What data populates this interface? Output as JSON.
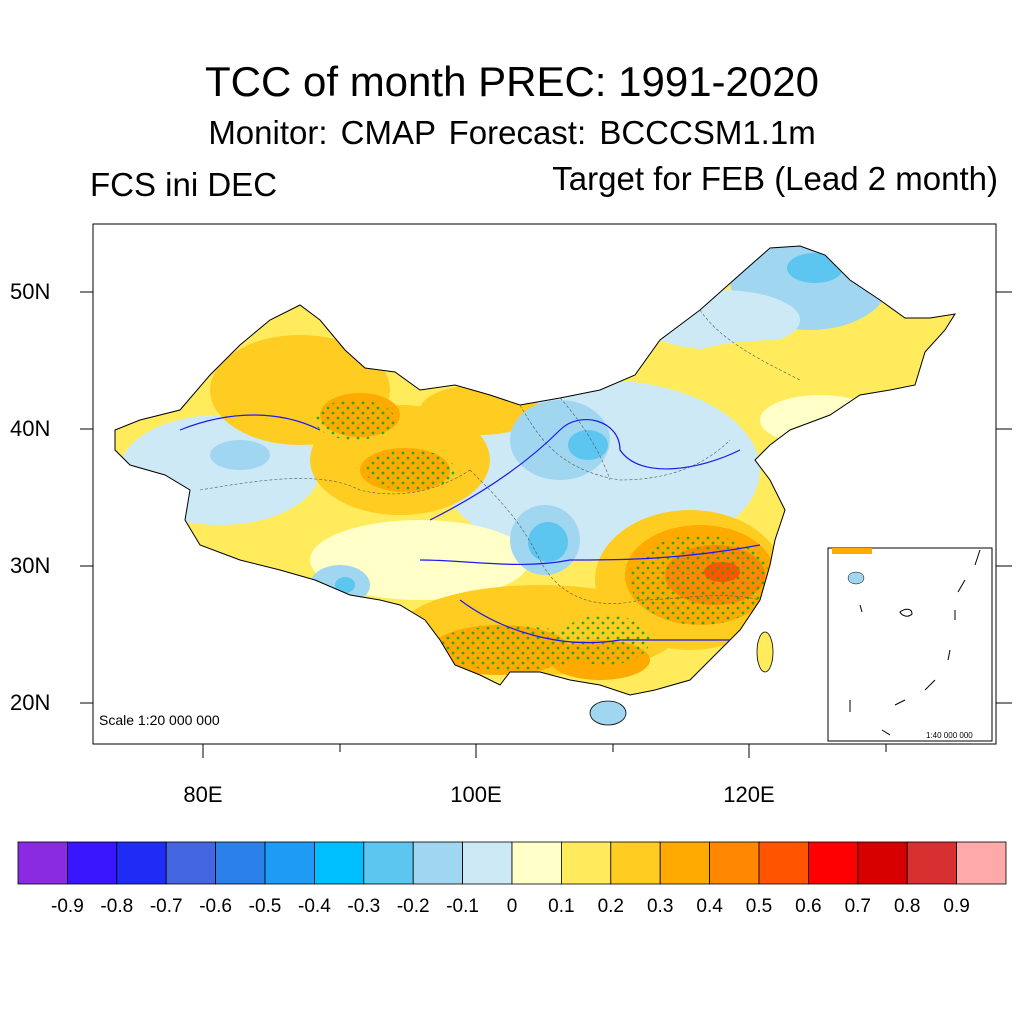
{
  "header": {
    "title": "TCC of month PREC: 1991-2020",
    "subtitle": "Monitor: CMAP   Forecast: BCCCSM1.1m",
    "left_label": "FCS ini DEC",
    "right_label": "Target for FEB (Lead 2 month)"
  },
  "map": {
    "scale_text": "Scale 1:20 000 000",
    "inset_scale_text": "1:40 000 000",
    "lat_labels": [
      "50N",
      "40N",
      "30N",
      "20N"
    ],
    "lon_labels": [
      "80E",
      "100E",
      "120E"
    ]
  },
  "colorbar": {
    "colors": [
      "#8a2be2",
      "#3a16ff",
      "#1f2cf5",
      "#4466e0",
      "#2b7fe8",
      "#1e9cf5",
      "#00bfff",
      "#5cc5f0",
      "#a0d6f0",
      "#cde9f6",
      "#ffffc8",
      "#ffeb5c",
      "#ffcc22",
      "#ffaa00",
      "#ff8800",
      "#ff5500",
      "#ff0000",
      "#d70000",
      "#d83030",
      "#ffaaaa"
    ],
    "labels": [
      "-0.9",
      "-0.8",
      "-0.7",
      "-0.6",
      "-0.5",
      "-0.4",
      "-0.3",
      "-0.2",
      "-0.1",
      "0",
      "0.1",
      "0.2",
      "0.3",
      "0.4",
      "0.5",
      "0.6",
      "0.7",
      "0.8",
      "0.9"
    ]
  }
}
